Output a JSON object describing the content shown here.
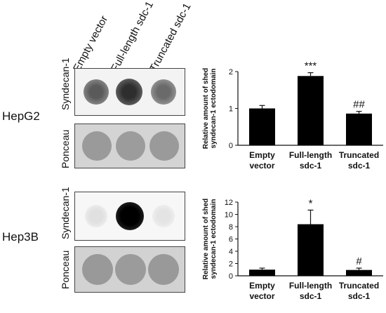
{
  "columns": [
    "Empty vector",
    "Full-length sdc-1",
    "Truncated sdc-1"
  ],
  "blot_labels": {
    "syndecan": "Syndecan-1",
    "ponceau": "Ponceau"
  },
  "rows": [
    {
      "name": "HepG2"
    },
    {
      "name": "Hep3B"
    }
  ],
  "chart_data": [
    {
      "type": "bar",
      "categories": [
        [
          "Empty",
          "vector"
        ],
        [
          "Full-length",
          "sdc-1"
        ],
        [
          "Truncated",
          "sdc-1"
        ]
      ],
      "values": [
        1.0,
        1.88,
        0.86
      ],
      "errors": [
        0.08,
        0.09,
        0.06
      ],
      "annotations": [
        "",
        "***",
        "##"
      ],
      "ylabel": [
        "Relative amount of shed",
        "syndecan-1 ectodomain"
      ],
      "ylim": [
        0,
        2
      ],
      "yticks": [
        0,
        1,
        2
      ],
      "grid": false
    },
    {
      "type": "bar",
      "categories": [
        [
          "Empty",
          "vector"
        ],
        [
          "Full-length",
          "sdc-1"
        ],
        [
          "Truncated",
          "sdc-1"
        ]
      ],
      "values": [
        1.0,
        8.4,
        0.95
      ],
      "errors": [
        0.25,
        2.3,
        0.3
      ],
      "annotations": [
        "",
        "*",
        "#"
      ],
      "ylabel": [
        "Relative amount of shed",
        "syndecan-1 ectodomain"
      ],
      "ylim": [
        0,
        12
      ],
      "yticks": [
        0,
        2,
        4,
        6,
        8,
        10,
        12
      ],
      "grid": false
    }
  ]
}
